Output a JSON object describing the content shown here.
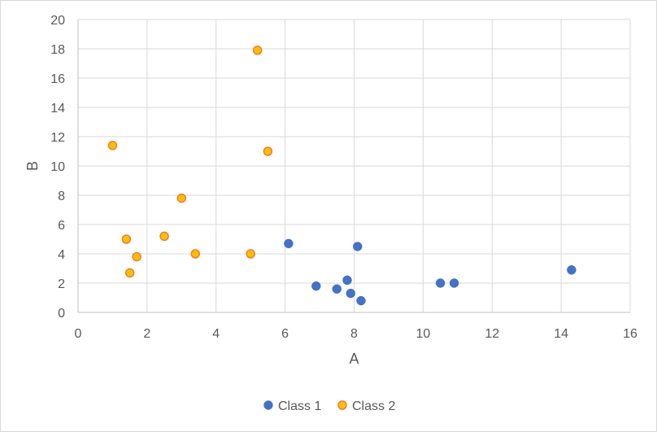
{
  "chart_data": {
    "type": "scatter",
    "title": "",
    "xlabel": "A",
    "ylabel": "B",
    "xlim": [
      0,
      16
    ],
    "ylim": [
      0,
      20
    ],
    "xticks": [
      0,
      2,
      4,
      6,
      8,
      10,
      12,
      14,
      16
    ],
    "yticks": [
      0,
      2,
      4,
      6,
      8,
      10,
      12,
      14,
      16,
      18,
      20
    ],
    "grid": true,
    "legend_position": "bottom",
    "series": [
      {
        "name": "Class 1",
        "color": "#4472c4",
        "points": [
          {
            "x": 6.1,
            "y": 4.7
          },
          {
            "x": 6.9,
            "y": 1.8
          },
          {
            "x": 7.5,
            "y": 1.6
          },
          {
            "x": 7.8,
            "y": 2.2
          },
          {
            "x": 7.9,
            "y": 1.3
          },
          {
            "x": 8.1,
            "y": 4.5
          },
          {
            "x": 8.2,
            "y": 0.8
          },
          {
            "x": 10.5,
            "y": 2.0
          },
          {
            "x": 10.9,
            "y": 2.0
          },
          {
            "x": 14.3,
            "y": 2.9
          }
        ]
      },
      {
        "name": "Class 2",
        "color": "#ffc000",
        "edge_color": "#ed7d31",
        "points": [
          {
            "x": 1.0,
            "y": 11.4
          },
          {
            "x": 1.4,
            "y": 5.0
          },
          {
            "x": 1.5,
            "y": 2.7
          },
          {
            "x": 1.7,
            "y": 3.8
          },
          {
            "x": 2.5,
            "y": 5.2
          },
          {
            "x": 3.0,
            "y": 7.8
          },
          {
            "x": 3.4,
            "y": 4.0
          },
          {
            "x": 5.0,
            "y": 4.0
          },
          {
            "x": 5.2,
            "y": 17.9
          },
          {
            "x": 5.5,
            "y": 11.0
          }
        ]
      }
    ]
  }
}
